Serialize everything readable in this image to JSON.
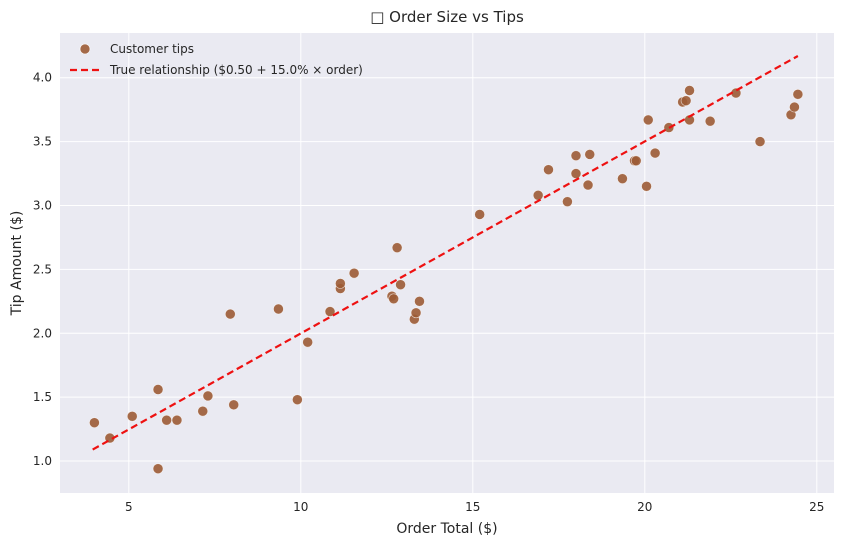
{
  "chart_data": {
    "type": "scatter",
    "title": "□ Order Size vs Tips",
    "xlabel": "Order Total ($)",
    "ylabel": "Tip Amount ($)",
    "xlim": [
      3.0,
      25.5
    ],
    "ylim": [
      0.75,
      4.35
    ],
    "xticks": [
      5,
      10,
      15,
      20,
      25
    ],
    "xtick_labels": [
      "5",
      "10",
      "15",
      "20",
      "25"
    ],
    "yticks": [
      1.0,
      1.5,
      2.0,
      2.5,
      3.0,
      3.5,
      4.0
    ],
    "ytick_labels": [
      "1.0",
      "1.5",
      "2.0",
      "2.5",
      "3.0",
      "3.5",
      "4.0"
    ],
    "grid": true,
    "legend_position": "top-left",
    "series": [
      {
        "name": "Customer tips",
        "kind": "scatter",
        "color": "#9c5b35",
        "points": [
          [
            4.0,
            1.3
          ],
          [
            4.45,
            1.18
          ],
          [
            5.1,
            1.35
          ],
          [
            5.85,
            1.56
          ],
          [
            5.85,
            0.94
          ],
          [
            6.1,
            1.32
          ],
          [
            6.4,
            1.32
          ],
          [
            7.15,
            1.39
          ],
          [
            7.3,
            1.51
          ],
          [
            7.95,
            2.15
          ],
          [
            8.05,
            1.44
          ],
          [
            9.35,
            2.19
          ],
          [
            9.9,
            1.48
          ],
          [
            10.2,
            1.93
          ],
          [
            10.85,
            2.17
          ],
          [
            11.15,
            2.35
          ],
          [
            11.15,
            2.39
          ],
          [
            11.55,
            2.47
          ],
          [
            12.65,
            2.29
          ],
          [
            12.7,
            2.27
          ],
          [
            12.8,
            2.67
          ],
          [
            12.9,
            2.38
          ],
          [
            13.3,
            2.11
          ],
          [
            13.35,
            2.16
          ],
          [
            13.45,
            2.25
          ],
          [
            15.2,
            2.93
          ],
          [
            16.9,
            3.08
          ],
          [
            17.2,
            3.28
          ],
          [
            17.75,
            3.03
          ],
          [
            18.0,
            3.39
          ],
          [
            18.0,
            3.25
          ],
          [
            18.35,
            3.16
          ],
          [
            18.4,
            3.4
          ],
          [
            19.35,
            3.21
          ],
          [
            19.7,
            3.35
          ],
          [
            19.75,
            3.35
          ],
          [
            20.05,
            3.15
          ],
          [
            20.1,
            3.67
          ],
          [
            20.3,
            3.41
          ],
          [
            20.7,
            3.61
          ],
          [
            21.1,
            3.81
          ],
          [
            21.2,
            3.82
          ],
          [
            21.3,
            3.67
          ],
          [
            21.3,
            3.9
          ],
          [
            21.9,
            3.66
          ],
          [
            22.65,
            3.88
          ],
          [
            23.35,
            3.5
          ],
          [
            24.25,
            3.71
          ],
          [
            24.35,
            3.77
          ],
          [
            24.45,
            3.87
          ]
        ]
      },
      {
        "name": "True relationship ($0.50 + 15.0% × order)",
        "kind": "line",
        "color": "#ee1111",
        "dash": "dashed",
        "points": [
          [
            3.95,
            1.09
          ],
          [
            24.45,
            4.17
          ]
        ]
      }
    ]
  }
}
